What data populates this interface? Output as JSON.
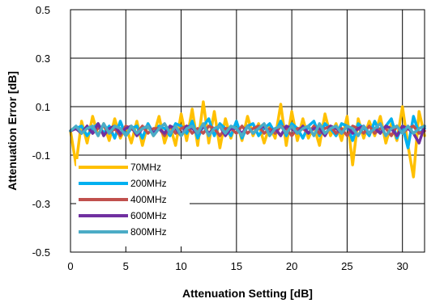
{
  "chart_data": {
    "type": "line",
    "title": "",
    "xlabel": "Attenuation Setting [dB]",
    "ylabel": "Attenuation Error [dB]",
    "xlim": [
      0,
      32
    ],
    "ylim": [
      -0.5,
      0.5
    ],
    "x_ticks": [
      0,
      5,
      10,
      15,
      20,
      25,
      30
    ],
    "x_tick_labels": [
      "0",
      "5",
      "10",
      "15",
      "20",
      "25",
      "30"
    ],
    "y_ticks": [
      -0.5,
      -0.3,
      -0.1,
      0.1,
      0.3,
      0.5
    ],
    "y_tick_labels": [
      "-0.5",
      "-0.3",
      "-0.1",
      "0.1",
      "0.3",
      "0.5"
    ],
    "grid": true,
    "legend_position": "bottom-left",
    "x": [
      0,
      0.5,
      1,
      1.5,
      2,
      2.5,
      3,
      3.5,
      4,
      4.5,
      5,
      5.5,
      6,
      6.5,
      7,
      7.5,
      8,
      8.5,
      9,
      9.5,
      10,
      10.5,
      11,
      11.5,
      12,
      12.5,
      13,
      13.5,
      14,
      14.5,
      15,
      15.5,
      16,
      16.5,
      17,
      17.5,
      18,
      18.5,
      19,
      19.5,
      20,
      20.5,
      21,
      21.5,
      22,
      22.5,
      23,
      23.5,
      24,
      24.5,
      25,
      25.5,
      26,
      26.5,
      27,
      27.5,
      28,
      28.5,
      29,
      29.5,
      30,
      30.5,
      31,
      31.5,
      32
    ],
    "series": [
      {
        "name": "70MHz",
        "color": "#FFC000",
        "values": [
          0,
          -0.14,
          0.04,
          -0.05,
          0.06,
          -0.02,
          0.03,
          -0.04,
          0.05,
          -0.03,
          0.02,
          -0.05,
          0.04,
          -0.06,
          0.03,
          -0.02,
          0.06,
          -0.05,
          0.02,
          -0.06,
          0.07,
          -0.04,
          0.09,
          -0.06,
          0.12,
          -0.05,
          0.08,
          -0.07,
          0.05,
          -0.03,
          0.04,
          -0.04,
          0.06,
          -0.02,
          0.03,
          -0.05,
          0.02,
          -0.03,
          0.11,
          -0.06,
          0.08,
          -0.04,
          0.05,
          -0.03,
          0.02,
          -0.06,
          0.07,
          -0.02,
          0.03,
          -0.04,
          0.06,
          -0.14,
          0.05,
          -0.03,
          0.04,
          -0.02,
          0.06,
          -0.05,
          0.03,
          -0.04,
          0.1,
          -0.06,
          -0.19,
          0.08,
          -0.02
        ]
      },
      {
        "name": "200MHz",
        "color": "#00B0F0",
        "values": [
          0,
          0.01,
          0.02,
          -0.02,
          0.01,
          0.03,
          -0.01,
          0.02,
          -0.03,
          0.04,
          -0.02,
          0.01,
          0.02,
          -0.03,
          0.03,
          -0.01,
          0.02,
          0.01,
          -0.02,
          0.03,
          0.02,
          -0.01,
          0.04,
          -0.03,
          0.02,
          0.05,
          -0.02,
          0.03,
          0.01,
          -0.02,
          0.04,
          -0.03,
          0.02,
          0.03,
          -0.02,
          0.01,
          0.03,
          -0.01,
          0.04,
          -0.02,
          0.03,
          0.01,
          -0.03,
          0.02,
          0.04,
          -0.02,
          0.03,
          0.01,
          -0.02,
          0.03,
          0.02,
          -0.04,
          0.03,
          0.01,
          -0.02,
          0.04,
          -0.01,
          0.02,
          0.05,
          -0.03,
          0.02,
          -0.07,
          0.06,
          -0.01,
          0.01
        ]
      },
      {
        "name": "400MHz",
        "color": "#C0504D",
        "values": [
          0,
          0.01,
          -0.01,
          0.02,
          -0.01,
          0.01,
          0.02,
          -0.01,
          0.01,
          -0.02,
          0.02,
          0.01,
          -0.01,
          0.02,
          -0.01,
          0.01,
          0.01,
          -0.02,
          0.02,
          -0.01,
          0.01,
          0.02,
          -0.01,
          0.01,
          -0.01,
          0.02,
          0.01,
          -0.02,
          0.01,
          0.01,
          -0.01,
          0.02,
          -0.01,
          0.01,
          0.02,
          -0.01,
          0.01,
          -0.01,
          0.02,
          0.01,
          -0.02,
          0.01,
          0.01,
          -0.01,
          0.02,
          -0.01,
          0.01,
          0.02,
          -0.01,
          0.01,
          -0.02,
          0.02,
          0.01,
          -0.01,
          0.02,
          -0.01,
          0.01,
          0.01,
          -0.02,
          0.02,
          -0.01,
          0.01,
          0.02,
          -0.01,
          0
        ]
      },
      {
        "name": "600MHz",
        "color": "#7030A0",
        "values": [
          0,
          0.01,
          -0.01,
          0.02,
          -0.01,
          0.03,
          -0.02,
          0.01,
          0.02,
          -0.01,
          0.01,
          0.02,
          -0.02,
          0.01,
          0.02,
          -0.01,
          0.01,
          -0.01,
          0.02,
          0.01,
          -0.02,
          0.02,
          0.01,
          -0.01,
          0.02,
          -0.01,
          0.01,
          0.02,
          -0.02,
          0.01,
          0.01,
          -0.01,
          0.02,
          -0.01,
          0.01,
          0.02,
          -0.01,
          0.01,
          -0.02,
          0.02,
          0.01,
          -0.01,
          0.02,
          -0.01,
          0.01,
          0.01,
          -0.02,
          0.02,
          0.01,
          -0.01,
          0.02,
          -0.01,
          0.01,
          0.02,
          -0.01,
          0.01,
          -0.01,
          0.02,
          0.01,
          -0.02,
          0.02,
          0.01,
          -0.01,
          -0.05,
          0.02
        ]
      },
      {
        "name": "800MHz",
        "color": "#4BACC6",
        "values": [
          0,
          0.02,
          -0.01,
          0.01,
          0.02,
          -0.02,
          0.03,
          -0.01,
          0.02,
          0.01,
          -0.02,
          0.02,
          -0.01,
          0.01,
          0.02,
          -0.02,
          0.01,
          0.03,
          -0.01,
          0.02,
          -0.02,
          0.01,
          0.02,
          -0.01,
          0.03,
          -0.02,
          0.01,
          0.02,
          -0.01,
          0.02,
          0.01,
          -0.02,
          0.02,
          -0.01,
          0.01,
          0.03,
          -0.02,
          0.01,
          0.02,
          -0.01,
          0.02,
          -0.01,
          0.01,
          0.02,
          -0.02,
          0.03,
          -0.01,
          0.01,
          0.02,
          -0.01,
          0.02,
          0.01,
          -0.02,
          0.02,
          -0.01,
          0.01,
          0.03,
          -0.02,
          0.01,
          0.02,
          -0.01,
          0.02,
          -0.01,
          0.01,
          0.02
        ]
      }
    ]
  }
}
